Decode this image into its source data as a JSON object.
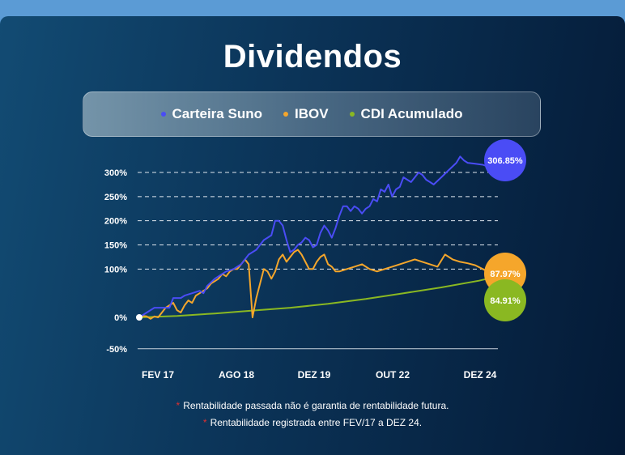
{
  "title": "Dividendos",
  "legend": [
    {
      "label": "Carteira Suno",
      "color": "#4a4cf5"
    },
    {
      "label": "IBOV",
      "color": "#f5a62b"
    },
    {
      "label": "CDI Acumulado",
      "color": "#8ab822"
    }
  ],
  "notes": [
    "Rentabilidade passada não é garantia de rentabilidade futura.",
    "Rentabilidade registrada entre FEV/17 a DEZ 24."
  ],
  "chart_data": {
    "type": "line",
    "y_ticks": [
      "300%",
      "250%",
      "200%",
      "150%",
      "100%",
      "0%",
      "-50%"
    ],
    "x_ticks": [
      "FEV 17",
      "AGO 18",
      "DEZ 19",
      "OUT 22",
      "DEZ 24"
    ],
    "ylim": [
      -50,
      325
    ],
    "xlim": [
      0,
      95
    ],
    "grid": "dashed-horizontal",
    "series": [
      {
        "name": "Carteira Suno",
        "color": "#4a4cf5",
        "end_label": "306.85%",
        "points": [
          [
            0,
            0
          ],
          [
            2,
            10
          ],
          [
            4,
            20
          ],
          [
            6,
            20
          ],
          [
            8,
            20
          ],
          [
            9,
            40
          ],
          [
            11,
            40
          ],
          [
            12,
            45
          ],
          [
            14,
            50
          ],
          [
            16,
            55
          ],
          [
            17,
            50
          ],
          [
            18,
            65
          ],
          [
            20,
            80
          ],
          [
            21,
            85
          ],
          [
            22,
            90
          ],
          [
            23,
            95
          ],
          [
            25,
            100
          ],
          [
            26,
            105
          ],
          [
            27,
            110
          ],
          [
            28,
            120
          ],
          [
            29,
            130
          ],
          [
            31,
            140
          ],
          [
            32,
            150
          ],
          [
            33,
            160
          ],
          [
            34,
            165
          ],
          [
            35,
            170
          ],
          [
            36,
            200
          ],
          [
            37,
            200
          ],
          [
            38,
            190
          ],
          [
            39,
            160
          ],
          [
            40,
            135
          ],
          [
            41,
            140
          ],
          [
            42,
            150
          ],
          [
            43,
            155
          ],
          [
            44,
            165
          ],
          [
            45,
            160
          ],
          [
            46,
            145
          ],
          [
            47,
            150
          ],
          [
            48,
            175
          ],
          [
            49,
            190
          ],
          [
            50,
            180
          ],
          [
            51,
            165
          ],
          [
            52,
            185
          ],
          [
            53,
            210
          ],
          [
            54,
            230
          ],
          [
            55,
            230
          ],
          [
            56,
            220
          ],
          [
            57,
            230
          ],
          [
            58,
            225
          ],
          [
            59,
            215
          ],
          [
            60,
            225
          ],
          [
            61,
            230
          ],
          [
            62,
            245
          ],
          [
            63,
            240
          ],
          [
            64,
            265
          ],
          [
            65,
            260
          ],
          [
            66,
            275
          ],
          [
            67,
            250
          ],
          [
            68,
            265
          ],
          [
            69,
            270
          ],
          [
            70,
            290
          ],
          [
            71,
            285
          ],
          [
            72,
            280
          ],
          [
            73,
            290
          ],
          [
            74,
            300
          ],
          [
            75,
            295
          ],
          [
            76,
            285
          ],
          [
            77,
            280
          ],
          [
            78,
            275
          ],
          [
            80,
            290
          ],
          [
            82,
            305
          ],
          [
            84,
            320
          ],
          [
            85,
            333
          ],
          [
            86,
            325
          ],
          [
            87,
            320
          ],
          [
            89,
            318
          ],
          [
            91,
            316
          ],
          [
            93,
            310
          ],
          [
            95,
            306.85
          ]
        ]
      },
      {
        "name": "IBOV",
        "color": "#f5a62b",
        "end_label": "87.97%",
        "points": [
          [
            0,
            0
          ],
          [
            1,
            3
          ],
          [
            2,
            2
          ],
          [
            3,
            -3
          ],
          [
            4,
            2
          ],
          [
            5,
            0
          ],
          [
            6,
            10
          ],
          [
            7,
            20
          ],
          [
            8,
            25
          ],
          [
            9,
            30
          ],
          [
            10,
            15
          ],
          [
            11,
            10
          ],
          [
            12,
            25
          ],
          [
            13,
            35
          ],
          [
            14,
            30
          ],
          [
            15,
            45
          ],
          [
            16,
            50
          ],
          [
            17,
            55
          ],
          [
            18,
            60
          ],
          [
            19,
            70
          ],
          [
            20,
            75
          ],
          [
            21,
            80
          ],
          [
            22,
            90
          ],
          [
            23,
            85
          ],
          [
            24,
            95
          ],
          [
            25,
            100
          ],
          [
            26,
            100
          ],
          [
            27,
            110
          ],
          [
            28,
            120
          ],
          [
            29,
            110
          ],
          [
            30,
            0
          ],
          [
            31,
            40
          ],
          [
            32,
            70
          ],
          [
            33,
            100
          ],
          [
            34,
            95
          ],
          [
            35,
            80
          ],
          [
            36,
            95
          ],
          [
            37,
            120
          ],
          [
            38,
            130
          ],
          [
            39,
            115
          ],
          [
            40,
            125
          ],
          [
            41,
            135
          ],
          [
            42,
            140
          ],
          [
            43,
            130
          ],
          [
            44,
            115
          ],
          [
            45,
            100
          ],
          [
            46,
            100
          ],
          [
            47,
            115
          ],
          [
            48,
            125
          ],
          [
            49,
            130
          ],
          [
            50,
            110
          ],
          [
            51,
            105
          ],
          [
            52,
            95
          ],
          [
            53,
            95
          ],
          [
            55,
            100
          ],
          [
            57,
            105
          ],
          [
            59,
            110
          ],
          [
            61,
            100
          ],
          [
            63,
            95
          ],
          [
            65,
            100
          ],
          [
            67,
            105
          ],
          [
            69,
            110
          ],
          [
            71,
            115
          ],
          [
            73,
            120
          ],
          [
            75,
            115
          ],
          [
            77,
            110
          ],
          [
            79,
            105
          ],
          [
            81,
            130
          ],
          [
            83,
            120
          ],
          [
            85,
            115
          ],
          [
            87,
            112
          ],
          [
            89,
            108
          ],
          [
            91,
            100
          ],
          [
            93,
            92
          ],
          [
            95,
            87.97
          ]
        ]
      },
      {
        "name": "CDI Acumulado",
        "color": "#8ab822",
        "end_label": "84.91%",
        "points": [
          [
            0,
            0
          ],
          [
            10,
            3
          ],
          [
            20,
            8
          ],
          [
            30,
            14
          ],
          [
            40,
            20
          ],
          [
            50,
            28
          ],
          [
            60,
            38
          ],
          [
            70,
            50
          ],
          [
            80,
            62
          ],
          [
            90,
            76
          ],
          [
            95,
            84.91
          ]
        ]
      }
    ]
  }
}
